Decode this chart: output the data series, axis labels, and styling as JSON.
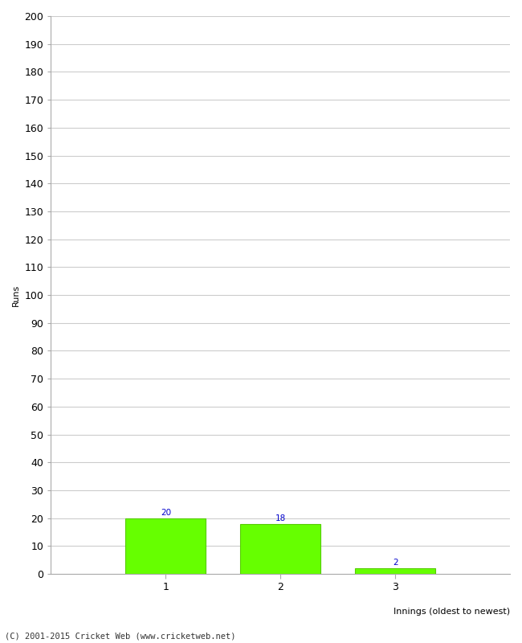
{
  "categories": [
    "1",
    "2",
    "3"
  ],
  "values": [
    20,
    18,
    2
  ],
  "bar_color": "#66ff00",
  "bar_edge_color": "#55cc00",
  "title": "",
  "xlabel": "Innings (oldest to newest)",
  "ylabel": "Runs",
  "ylim": [
    0,
    200
  ],
  "yticks": [
    0,
    10,
    20,
    30,
    40,
    50,
    60,
    70,
    80,
    90,
    100,
    110,
    120,
    130,
    140,
    150,
    160,
    170,
    180,
    190,
    200
  ],
  "label_color": "#0000cc",
  "label_fontsize": 7.5,
  "footer_text": "(C) 2001-2015 Cricket Web (www.cricketweb.net)",
  "background_color": "#ffffff",
  "grid_color": "#cccccc"
}
